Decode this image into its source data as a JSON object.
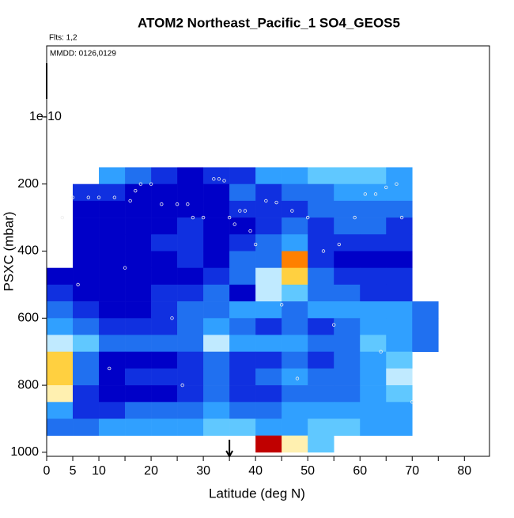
{
  "chart_data": {
    "type": "heatmap",
    "title": "ATOM2 Northeast_Pacific_1 SO4_GEOS5",
    "subtitle": "Flts: 1,2",
    "annotation": "MMDD: 0126,0129",
    "x_label": "Latitude (deg N)",
    "y_label": "PSXC (mbar)",
    "xlim": [
      0,
      84.8
    ],
    "ylim": [
      1012,
      -212
    ],
    "xticks": [
      0,
      5,
      10,
      20,
      30,
      40,
      50,
      60,
      70,
      80
    ],
    "xminorticks": [
      15,
      25,
      35,
      45,
      55,
      65,
      75
    ],
    "yticks": [
      {
        "value": 1e-10,
        "label": "1e-10"
      },
      200,
      400,
      600,
      800,
      1000
    ],
    "x_edges": [
      0,
      5,
      10,
      15,
      20,
      25,
      30,
      35,
      40,
      45,
      50,
      55,
      60,
      65,
      70,
      75
    ],
    "y_edges": [
      150,
      200,
      250,
      300,
      350,
      400,
      450,
      500,
      550,
      600,
      650,
      700,
      750,
      800,
      850,
      900,
      950,
      1000
    ],
    "colorscale": [
      "#00007f",
      "#0000c8",
      "#1030e0",
      "#2070f0",
      "#30a0ff",
      "#60c8ff",
      "#c0eaff",
      "#fff0b0",
      "#ffd040",
      "#ff8000",
      "#c00000"
    ],
    "grid": [
      [
        null,
        null,
        4,
        3,
        2,
        1,
        2,
        2,
        4,
        4,
        5,
        5,
        5,
        4,
        null
      ],
      [
        null,
        2,
        2,
        1,
        1,
        1,
        1,
        3,
        2,
        3,
        3,
        4,
        4,
        4,
        null
      ],
      [
        null,
        1,
        1,
        1,
        1,
        1,
        1,
        2,
        2,
        2,
        3,
        3,
        3,
        3,
        null
      ],
      [
        null,
        1,
        1,
        1,
        1,
        2,
        1,
        1,
        2,
        3,
        2,
        3,
        3,
        2,
        null
      ],
      [
        null,
        1,
        1,
        1,
        2,
        2,
        1,
        2,
        3,
        4,
        2,
        2,
        2,
        2,
        null
      ],
      [
        null,
        1,
        1,
        1,
        1,
        2,
        1,
        3,
        3,
        9,
        2,
        1,
        1,
        1,
        null
      ],
      [
        1,
        1,
        1,
        1,
        1,
        1,
        2,
        3,
        6,
        8,
        3,
        2,
        2,
        2,
        null
      ],
      [
        2,
        1,
        1,
        1,
        2,
        2,
        3,
        1,
        6,
        5,
        3,
        3,
        2,
        2,
        null
      ],
      [
        3,
        2,
        1,
        1,
        2,
        3,
        3,
        4,
        4,
        3,
        4,
        4,
        4,
        4,
        3
      ],
      [
        4,
        3,
        2,
        2,
        2,
        3,
        4,
        3,
        2,
        3,
        2,
        3,
        4,
        4,
        3
      ],
      [
        6,
        5,
        3,
        3,
        3,
        3,
        6,
        4,
        4,
        4,
        3,
        3,
        5,
        4,
        3
      ],
      [
        8,
        3,
        1,
        1,
        1,
        2,
        3,
        2,
        2,
        3,
        2,
        3,
        4,
        5,
        null
      ],
      [
        8,
        3,
        1,
        2,
        2,
        2,
        3,
        2,
        3,
        4,
        3,
        3,
        4,
        6,
        null
      ],
      [
        7,
        2,
        1,
        1,
        1,
        2,
        3,
        2,
        2,
        3,
        3,
        3,
        4,
        5,
        null
      ],
      [
        4,
        2,
        2,
        3,
        3,
        3,
        4,
        3,
        3,
        4,
        4,
        4,
        4,
        4,
        null
      ],
      [
        3,
        3,
        4,
        4,
        4,
        4,
        5,
        5,
        4,
        4,
        5,
        5,
        4,
        4,
        null
      ],
      [
        null,
        null,
        null,
        null,
        null,
        null,
        null,
        null,
        10,
        7,
        5,
        null,
        null,
        null,
        null
      ]
    ],
    "track": {
      "x": [
        3,
        5,
        8,
        10,
        13,
        16,
        17,
        18,
        20,
        22,
        25,
        27,
        28,
        30,
        32,
        33,
        34,
        35,
        36,
        37,
        38,
        39,
        40,
        42,
        44,
        47,
        50,
        53,
        56,
        59,
        61,
        63,
        65,
        67,
        68,
        6,
        15,
        24,
        45,
        55,
        64,
        70,
        12,
        26,
        48
      ],
      "y": [
        300,
        240,
        240,
        240,
        240,
        250,
        220,
        200,
        200,
        260,
        260,
        260,
        300,
        300,
        185,
        185,
        190,
        300,
        320,
        280,
        280,
        340,
        380,
        250,
        255,
        280,
        300,
        400,
        380,
        300,
        230,
        230,
        210,
        200,
        300,
        500,
        450,
        600,
        560,
        620,
        700,
        850,
        750,
        800,
        780
      ]
    },
    "arrow_x": 35
  }
}
